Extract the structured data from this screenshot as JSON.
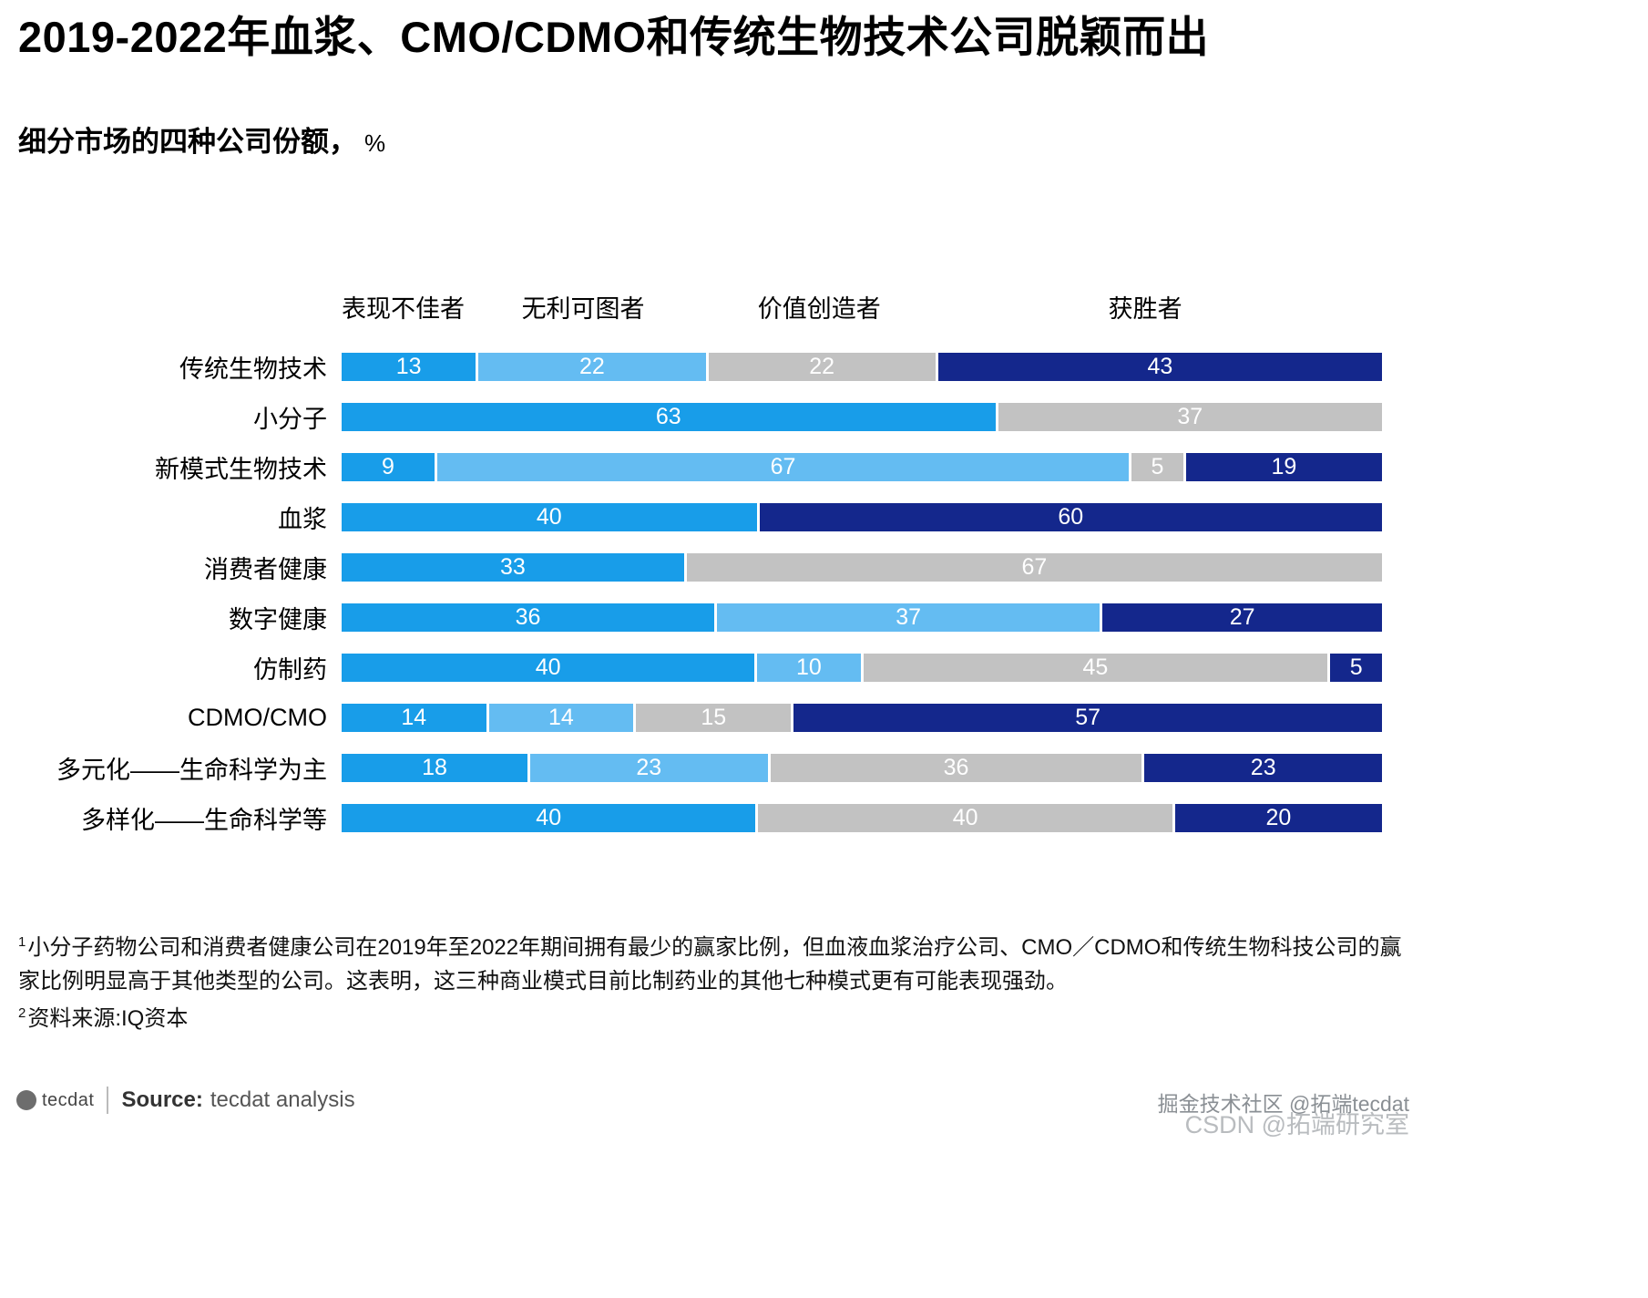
{
  "page": {
    "title": "2019-2022年血浆、CMO/CDMO和传统生物技术公司脱颖而出",
    "subtitle_main": "细分市场的四种公司份额，",
    "subtitle_unit": "%"
  },
  "chart_data": {
    "type": "bar",
    "orientation": "horizontal",
    "stacked": true,
    "unit": "%",
    "xlim": [
      0,
      100
    ],
    "grid": false,
    "legend_position": "top",
    "palette": {
      "underperformer": "#189DE9",
      "unprofitable": "#64BCF2",
      "value_creator": "#C2C2C2",
      "winner": "#14278C"
    },
    "header_labels": [
      {
        "key": "underperformer",
        "label": "表现不佳者",
        "left_pct": 0
      },
      {
        "key": "unprofitable",
        "label": "无利可图者",
        "left_pct": 17.3
      },
      {
        "key": "value_creator",
        "label": "价值创造者",
        "left_pct": 40.0
      },
      {
        "key": "winner",
        "label": "获胜者",
        "left_pct": 73.7
      }
    ],
    "rows": [
      {
        "category": "传统生物技术",
        "segments": [
          {
            "series": "underperformer",
            "value": 13
          },
          {
            "series": "unprofitable",
            "value": 22
          },
          {
            "series": "value_creator",
            "value": 22
          },
          {
            "series": "winner",
            "value": 43
          }
        ]
      },
      {
        "category": "小分子",
        "segments": [
          {
            "series": "underperformer",
            "value": 63
          },
          {
            "series": "value_creator",
            "value": 37
          }
        ]
      },
      {
        "category": "新模式生物技术",
        "segments": [
          {
            "series": "underperformer",
            "value": 9
          },
          {
            "series": "unprofitable",
            "value": 67
          },
          {
            "series": "value_creator",
            "value": 5
          },
          {
            "series": "winner",
            "value": 19
          }
        ]
      },
      {
        "category": "血浆",
        "segments": [
          {
            "series": "underperformer",
            "value": 40
          },
          {
            "series": "winner",
            "value": 60
          }
        ]
      },
      {
        "category": "消费者健康",
        "segments": [
          {
            "series": "underperformer",
            "value": 33
          },
          {
            "series": "value_creator",
            "value": 67
          }
        ]
      },
      {
        "category": "数字健康",
        "segments": [
          {
            "series": "underperformer",
            "value": 36
          },
          {
            "series": "unprofitable",
            "value": 37
          },
          {
            "series": "winner",
            "value": 27
          }
        ]
      },
      {
        "category": "仿制药",
        "segments": [
          {
            "series": "underperformer",
            "value": 40
          },
          {
            "series": "unprofitable",
            "value": 10
          },
          {
            "series": "value_creator",
            "value": 45
          },
          {
            "series": "winner",
            "value": 5
          }
        ]
      },
      {
        "category": "CDMO/CMO",
        "segments": [
          {
            "series": "underperformer",
            "value": 14
          },
          {
            "series": "unprofitable",
            "value": 14
          },
          {
            "series": "value_creator",
            "value": 15
          },
          {
            "series": "winner",
            "value": 57
          }
        ]
      },
      {
        "category": "多元化——生命科学为主",
        "segments": [
          {
            "series": "underperformer",
            "value": 18
          },
          {
            "series": "unprofitable",
            "value": 23
          },
          {
            "series": "value_creator",
            "value": 36
          },
          {
            "series": "winner",
            "value": 23
          }
        ]
      },
      {
        "category": "多样化——生命科学等",
        "segments": [
          {
            "series": "underperformer",
            "value": 40
          },
          {
            "series": "value_creator",
            "value": 40
          },
          {
            "series": "winner",
            "value": 20
          }
        ]
      }
    ]
  },
  "footnotes": [
    {
      "marker": "1",
      "text": "小分子药物公司和消费者健康公司在2019年至2022年期间拥有最少的赢家比例，但血液血浆治疗公司、CMO／CDMO和传统生物科技公司的赢家比例明显高于其他类型的公司。这表明，这三种商业模式目前比制药业的其他七种模式更有可能表现强劲。"
    },
    {
      "marker": "2",
      "text": "资料来源:IQ资本"
    }
  ],
  "footer": {
    "logo_text": "tecdat",
    "source_label": "Source:",
    "source_text": "tecdat analysis"
  },
  "watermarks": [
    "掘金技术社区 @拓端tecdat",
    "CSDN @拓端研究室"
  ]
}
